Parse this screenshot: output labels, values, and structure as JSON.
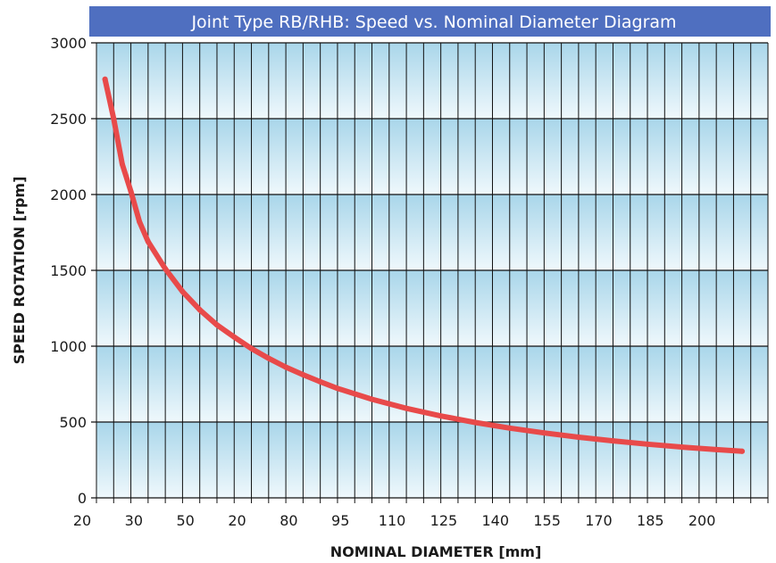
{
  "chart_data": {
    "type": "line",
    "title": "Joint Type RB/RHB: Speed vs. Nominal Diameter Diagram",
    "xlabel": "NOMINAL DIAMETER [mm]",
    "ylabel": "SPEED ROTATION [rpm]",
    "x_tick_labels": [
      "20",
      "30",
      "50",
      "20",
      "80",
      "95",
      "110",
      "125",
      "140",
      "155",
      "170",
      "185",
      "200"
    ],
    "y_tick_labels": [
      "0",
      "500",
      "1000",
      "1500",
      "2000",
      "2500",
      "3000"
    ],
    "ylim": [
      0,
      3000
    ],
    "x_tick_count": 39,
    "label_every": 3,
    "grid": true,
    "series": [
      {
        "x_tick_index": [
          0.5,
          1.0,
          1.5,
          2.0,
          2.5,
          3.0,
          4.0,
          5.0,
          6.0,
          7.0,
          8.0,
          9.0,
          10.0,
          11.0,
          12.0,
          13.0,
          14.0,
          16.0,
          18.0,
          20.0,
          22.0,
          24.0,
          26.0,
          28.0,
          30.0,
          32.0,
          34.0,
          36.0,
          37.5
        ],
        "values": [
          2760,
          2500,
          2200,
          2020,
          1820,
          1690,
          1510,
          1360,
          1240,
          1140,
          1060,
          985,
          920,
          862,
          812,
          765,
          722,
          650,
          590,
          540,
          497,
          460,
          428,
          400,
          376,
          354,
          335,
          318,
          307
        ],
        "color": "#e84a4a"
      }
    ]
  },
  "colors": {
    "title_bg": "#4f6fc0",
    "band_top": "#a9d6ea",
    "band_bottom": "#eff8fc",
    "grid": "#111111",
    "line": "#e84a4a"
  }
}
